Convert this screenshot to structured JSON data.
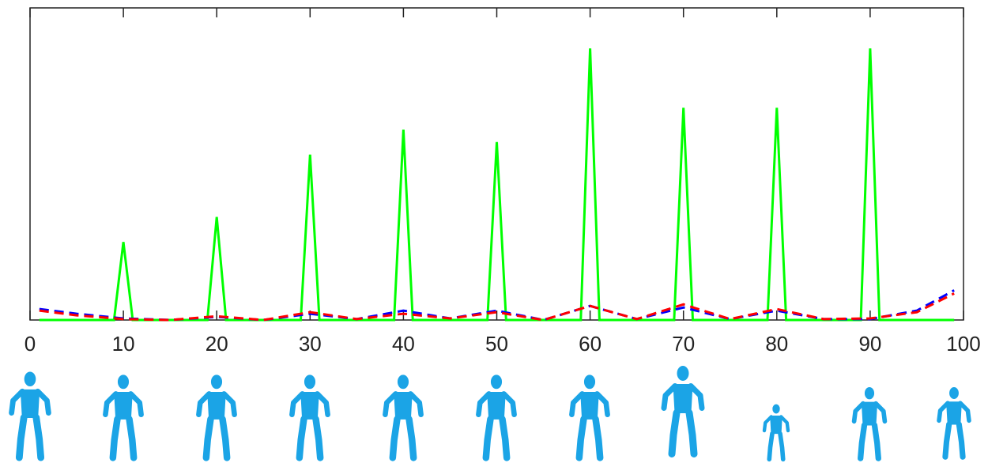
{
  "chart_data": {
    "type": "line",
    "xlim": [
      0,
      100
    ],
    "xticks": [
      0,
      10,
      20,
      30,
      40,
      50,
      60,
      70,
      80,
      90,
      100
    ],
    "ylim": [
      0,
      1
    ],
    "series": [
      {
        "color": "#00ff00",
        "dash": false,
        "x": [
          1,
          9,
          10,
          11,
          19,
          20,
          21,
          29,
          30,
          31,
          39,
          40,
          41,
          49,
          50,
          51,
          59,
          60,
          61,
          69,
          70,
          71,
          79,
          80,
          81,
          89,
          90,
          91,
          99
        ],
        "values": [
          0,
          0,
          0.25,
          0,
          0,
          0.33,
          0,
          0,
          0.53,
          0,
          0,
          0.61,
          0,
          0,
          0.57,
          0,
          0,
          0.87,
          0,
          0,
          0.68,
          0,
          0,
          0.68,
          0,
          0,
          0.87,
          0,
          0
        ]
      },
      {
        "color": "#0000ff",
        "dash": true,
        "x": [
          1,
          5,
          10,
          15,
          20,
          25,
          30,
          35,
          40,
          45,
          50,
          55,
          60,
          65,
          70,
          75,
          80,
          85,
          90,
          95,
          99
        ],
        "values": [
          0.035,
          0.02,
          0.005,
          0,
          0.01,
          0,
          0.02,
          0.003,
          0.03,
          0.005,
          0.03,
          0,
          0.045,
          0.003,
          0.04,
          0.003,
          0.03,
          0.003,
          0.003,
          0.03,
          0.095
        ]
      },
      {
        "color": "#ff0000",
        "dash": true,
        "x": [
          1,
          5,
          10,
          15,
          20,
          25,
          30,
          35,
          40,
          45,
          50,
          55,
          60,
          65,
          70,
          75,
          80,
          85,
          90,
          95,
          99
        ],
        "values": [
          0.03,
          0.015,
          0.003,
          0,
          0.012,
          0,
          0.025,
          0.003,
          0.02,
          0.005,
          0.025,
          0,
          0.045,
          0.003,
          0.05,
          0.003,
          0.035,
          0.003,
          0.005,
          0.025,
          0.085
        ]
      }
    ]
  }
}
